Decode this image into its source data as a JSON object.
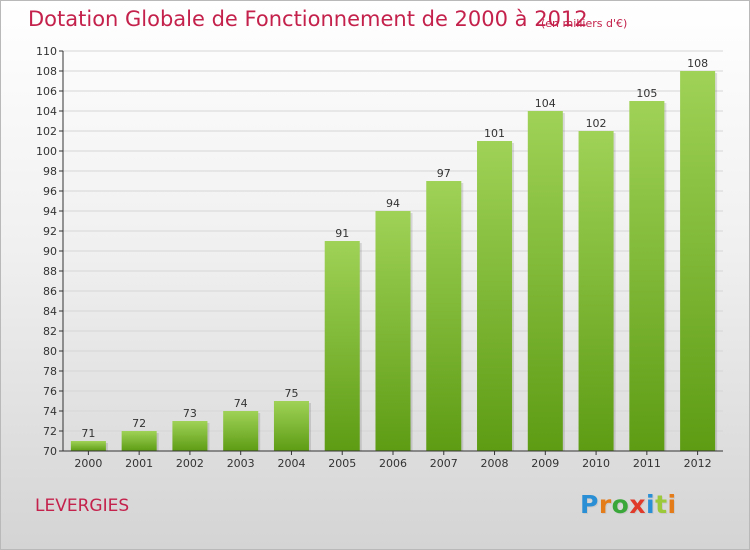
{
  "title": "Dotation Globale de Fonctionnement de 2000 à 2012",
  "subtitle": "(en milliers d'€)",
  "commune": "LEVERGIES",
  "logo": {
    "letters": [
      "P",
      "r",
      "o",
      "x",
      "i",
      "t",
      "i"
    ],
    "colors": [
      "#2a8fd4",
      "#e47c1a",
      "#3aa73a",
      "#e03a2a",
      "#2a8fd4",
      "#9bc93a",
      "#e47c1a"
    ]
  },
  "colors": {
    "bar_top": "#9fd257",
    "bar_bottom": "#5e9c14",
    "title": "#c4224c",
    "axis": "#333333",
    "grid": "#d6d6d6"
  },
  "chart_data": {
    "type": "bar",
    "categories": [
      "2000",
      "2001",
      "2002",
      "2003",
      "2004",
      "2005",
      "2006",
      "2007",
      "2008",
      "2009",
      "2010",
      "2011",
      "2012"
    ],
    "values": [
      71,
      72,
      73,
      74,
      75,
      91,
      94,
      97,
      101,
      104,
      102,
      105,
      108
    ],
    "data_labels": [
      "71",
      "72",
      "73",
      "74",
      "75",
      "91",
      "94",
      "97",
      "101",
      "104",
      "102",
      "105",
      "108"
    ],
    "ylim": [
      70,
      110
    ],
    "yticks": [
      "70",
      "72",
      "74",
      "76",
      "78",
      "80",
      "82",
      "84",
      "86",
      "88",
      "90",
      "92",
      "94",
      "96",
      "98",
      "100",
      "102",
      "104",
      "106",
      "108",
      "110"
    ],
    "grid": true,
    "legend": "none",
    "xlabel": "",
    "ylabel": ""
  }
}
